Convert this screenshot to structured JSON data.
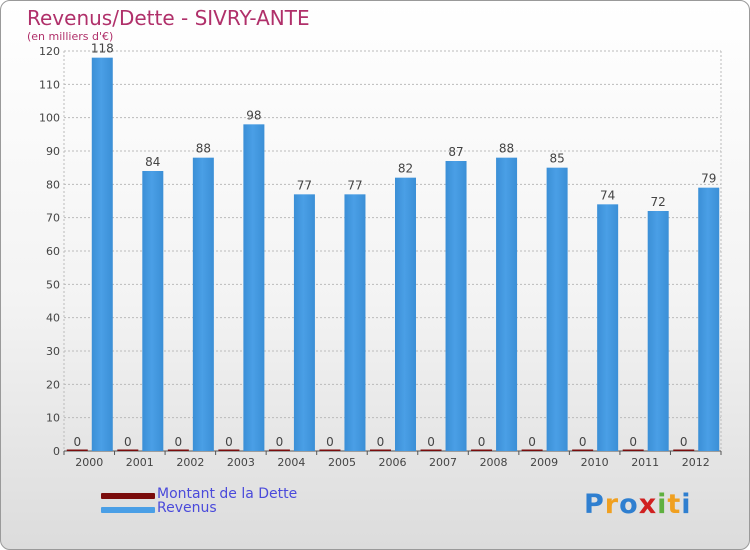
{
  "title": "Revenus/Dette - SIVRY-ANTE",
  "subtitle": "(en milliers d'€)",
  "legend": [
    {
      "label": "Montant de la Dette",
      "color": "#7a0c0c"
    },
    {
      "label": "Revenus",
      "color": "#4a9fe6"
    }
  ],
  "logo": {
    "text": "Proxiti",
    "letters": [
      "P",
      "r",
      "o",
      "x",
      "i",
      "t",
      "i"
    ],
    "colors": [
      "#2f7fd0",
      "#f0a020",
      "#2f7fd0",
      "#d02020",
      "#5fb040",
      "#f0a020",
      "#2f7fd0"
    ]
  },
  "colors": {
    "dette": "#7a0c0c",
    "revenus": "#4a9fe6",
    "grid": "#bbbbbb",
    "axis_text": "#444444"
  },
  "chart_data": {
    "type": "bar",
    "categories": [
      "2000",
      "2001",
      "2002",
      "2003",
      "2004",
      "2005",
      "2006",
      "2007",
      "2008",
      "2009",
      "2010",
      "2011",
      "2012"
    ],
    "series": [
      {
        "name": "Montant de la Dette",
        "values": [
          0,
          0,
          0,
          0,
          0,
          0,
          0,
          0,
          0,
          0,
          0,
          0,
          0
        ]
      },
      {
        "name": "Revenus",
        "values": [
          118,
          84,
          88,
          98,
          77,
          77,
          82,
          87,
          88,
          85,
          74,
          72,
          79
        ]
      }
    ],
    "ylim": [
      0,
      120
    ],
    "yticks": [
      0,
      10,
      20,
      30,
      40,
      50,
      60,
      70,
      80,
      90,
      100,
      110,
      120
    ],
    "title": "Revenus/Dette - SIVRY-ANTE",
    "ylabel": "(en milliers d'€)",
    "xlabel": "",
    "grid": true,
    "legend_position": "bottom-left"
  }
}
